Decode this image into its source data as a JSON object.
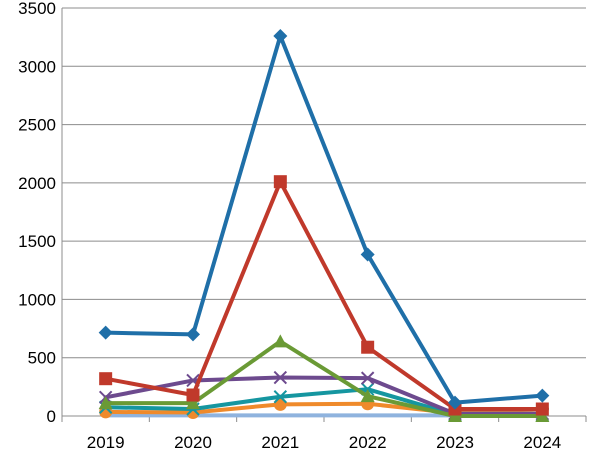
{
  "chart_data": {
    "type": "line",
    "categories": [
      "2019",
      "2020",
      "2021",
      "2022",
      "2023",
      "2024"
    ],
    "yticks": [
      "0",
      "500",
      "1000",
      "1500",
      "2000",
      "2500",
      "3000",
      "3500"
    ],
    "ylim": [
      0,
      3500
    ],
    "grid": true,
    "legend": "none",
    "series": [
      {
        "color": "#1f6fa8",
        "marker": "diamond",
        "values": [
          715,
          700,
          3260,
          1385,
          115,
          175
        ]
      },
      {
        "color": "#c0392b",
        "marker": "square",
        "values": [
          320,
          180,
          2010,
          590,
          60,
          60
        ]
      },
      {
        "color": "#6a9a35",
        "marker": "triangle",
        "values": [
          110,
          110,
          640,
          170,
          0,
          0
        ]
      },
      {
        "color": "#6d4a8e",
        "marker": "x",
        "values": [
          160,
          305,
          330,
          325,
          20,
          20
        ]
      },
      {
        "color": "#1596a0",
        "marker": "x",
        "values": [
          75,
          60,
          165,
          230,
          10,
          10
        ]
      },
      {
        "color": "#ef8a2b",
        "marker": "circle",
        "values": [
          35,
          30,
          100,
          105,
          25,
          60
        ]
      },
      {
        "color": "#8fb3de",
        "marker": "none",
        "values": [
          5,
          5,
          5,
          5,
          5,
          5
        ]
      }
    ]
  }
}
